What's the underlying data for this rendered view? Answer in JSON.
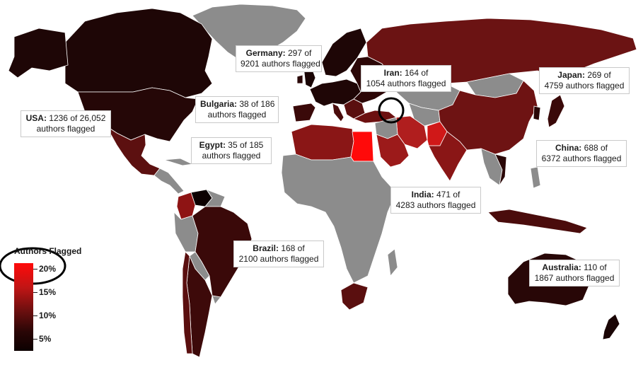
{
  "legend": {
    "title": "Authors Flagged",
    "labels": [
      "20%",
      "15%",
      "10%",
      "5%"
    ],
    "gradient_colors": [
      "#ff0a0a",
      "#c01515",
      "#6a0f0f",
      "#2a0606",
      "#0c0000"
    ]
  },
  "colors": {
    "no_data": "#8c8c8c",
    "country_border": "#ffffff",
    "annotation_circle": "#000000"
  },
  "callouts": {
    "germany": {
      "country": "Germany:",
      "text1": " 297 of",
      "text2": "9201 authors flagged"
    },
    "iran": {
      "country": "Iran:",
      "text1": " 164 of",
      "text2": "1054 authors flagged"
    },
    "japan": {
      "country": "Japan:",
      "text1": " 269 of",
      "text2": "4759 authors flagged"
    },
    "bulgaria": {
      "country": "Bulgaria:",
      "text1": " 38 of 186",
      "text2": "authors flagged"
    },
    "usa": {
      "country": "USA:",
      "text1": " 1236 of 26,052",
      "text2": "authors flagged"
    },
    "egypt": {
      "country": "Egypt:",
      "text1": " 35 of 185",
      "text2": "authors flagged"
    },
    "china": {
      "country": "China:",
      "text1": " 688 of",
      "text2": "6372 authors flagged"
    },
    "india": {
      "country": "India:",
      "text1": " 471 of",
      "text2": "4283 authors flagged"
    },
    "brazil": {
      "country": "Brazil:",
      "text1": " 168 of",
      "text2": "2100 authors flagged"
    },
    "australia": {
      "country": "Australia:",
      "text1": " 110 of",
      "text2": "1867 authors flagged"
    }
  }
}
